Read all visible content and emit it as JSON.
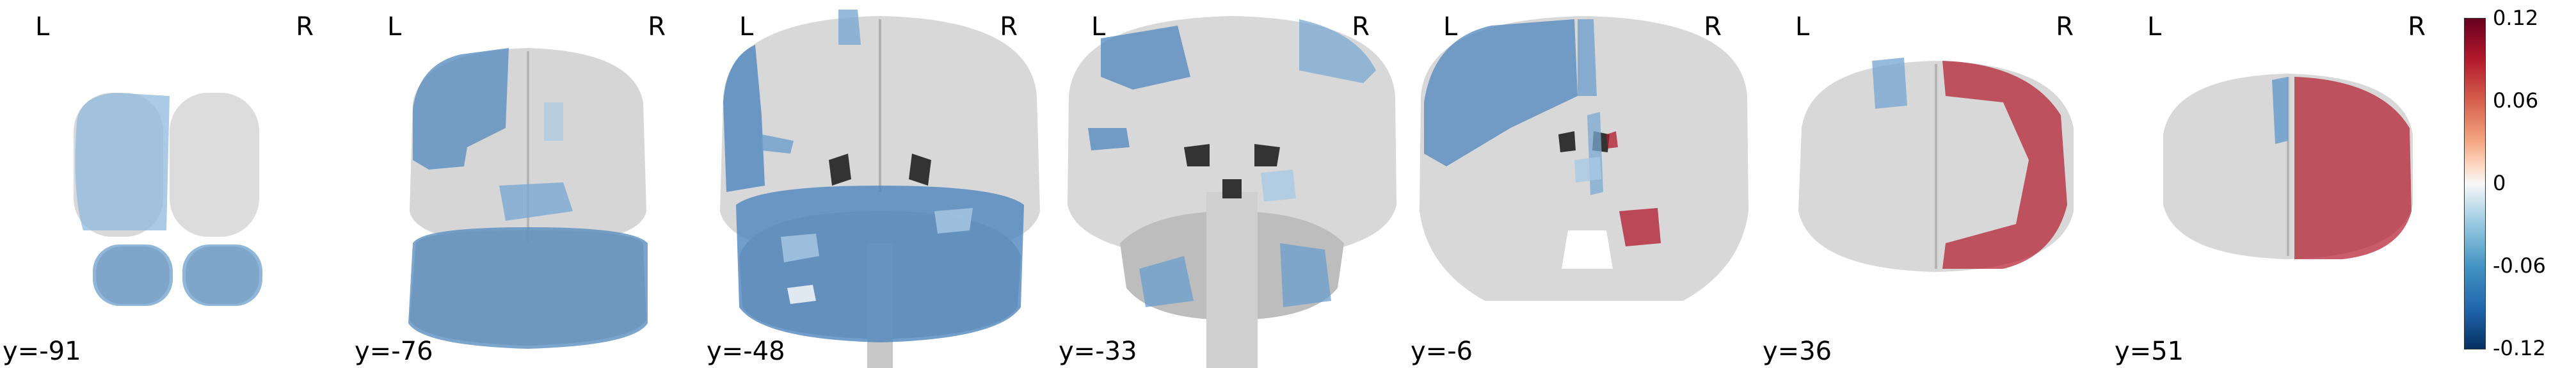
{
  "orientation": {
    "left": "L",
    "right": "R"
  },
  "slices": [
    {
      "label": "y=-91"
    },
    {
      "label": "y=-76"
    },
    {
      "label": "y=-48"
    },
    {
      "label": "y=-33"
    },
    {
      "label": "y=-6"
    },
    {
      "label": "y=36"
    },
    {
      "label": "y=51"
    }
  ],
  "colorbar": {
    "ticks": [
      "0.12",
      "0.06",
      "0",
      "-0.06",
      "-0.12"
    ],
    "range": [
      -0.12,
      0.12
    ],
    "colormap": "diverging red-blue",
    "positive_color": "#b2182b",
    "negative_color": "#2166ac"
  }
}
